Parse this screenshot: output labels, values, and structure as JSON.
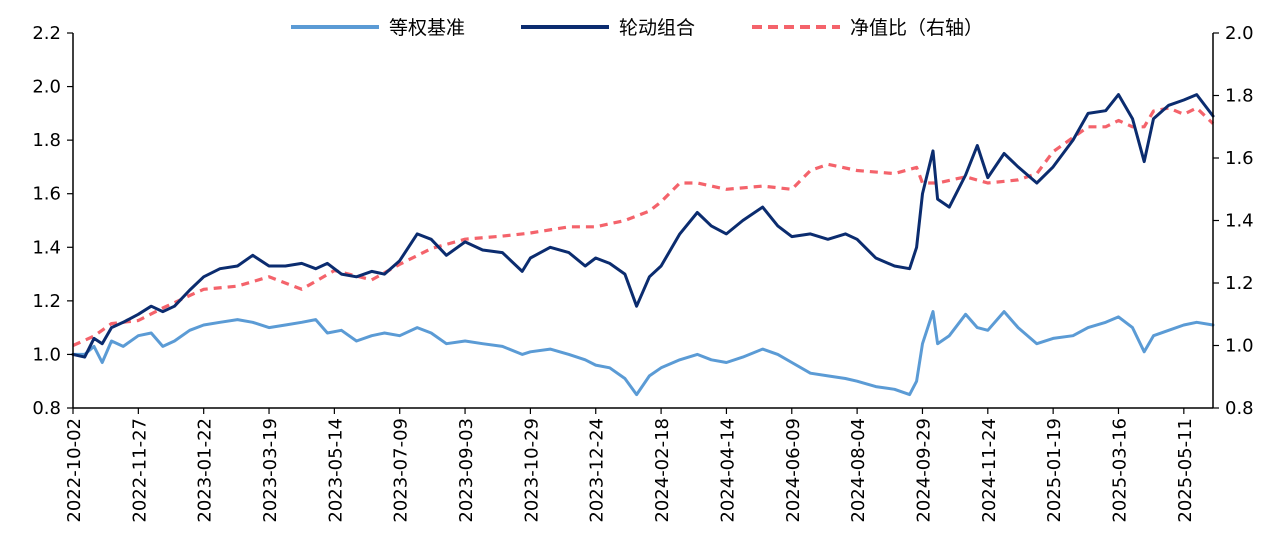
{
  "chart_data": {
    "type": "line",
    "title": "",
    "xlabel": "",
    "ylabel": "",
    "ylim_left": [
      0.8,
      2.2
    ],
    "ylim_right": [
      0.8,
      2.0
    ],
    "y_ticks_left": [
      "0.8",
      "1.0",
      "1.2",
      "1.4",
      "1.6",
      "1.8",
      "2.0",
      "2.2"
    ],
    "y_ticks_right": [
      "0.8",
      "1.0",
      "1.2",
      "1.4",
      "1.6",
      "1.8",
      "2.0"
    ],
    "x_range": [
      "2022-10-02",
      "2025-06-05"
    ],
    "x_ticks": [
      "2022-10-02",
      "2022-11-27",
      "2023-01-22",
      "2023-03-19",
      "2023-05-14",
      "2023-07-09",
      "2023-09-03",
      "2023-10-29",
      "2023-12-24",
      "2024-02-18",
      "2024-04-14",
      "2024-06-09",
      "2024-08-04",
      "2024-09-29",
      "2024-11-24",
      "2025-01-19",
      "2025-03-16",
      "2025-05-11"
    ],
    "legend_position": "top-center",
    "grid": false,
    "series": [
      {
        "name": "等权基准",
        "axis": "left",
        "color": "#5b9bd5",
        "style": "solid",
        "points": [
          [
            "2022-10-02",
            1.0
          ],
          [
            "2022-10-12",
            1.0
          ],
          [
            "2022-10-20",
            1.03
          ],
          [
            "2022-10-27",
            0.97
          ],
          [
            "2022-11-04",
            1.05
          ],
          [
            "2022-11-14",
            1.03
          ],
          [
            "2022-11-27",
            1.07
          ],
          [
            "2022-12-08",
            1.08
          ],
          [
            "2022-12-18",
            1.03
          ],
          [
            "2022-12-28",
            1.05
          ],
          [
            "2023-01-10",
            1.09
          ],
          [
            "2023-01-22",
            1.11
          ],
          [
            "2023-02-05",
            1.12
          ],
          [
            "2023-02-20",
            1.13
          ],
          [
            "2023-03-05",
            1.12
          ],
          [
            "2023-03-19",
            1.1
          ],
          [
            "2023-04-02",
            1.11
          ],
          [
            "2023-04-16",
            1.12
          ],
          [
            "2023-04-28",
            1.13
          ],
          [
            "2023-05-08",
            1.08
          ],
          [
            "2023-05-20",
            1.09
          ],
          [
            "2023-06-02",
            1.05
          ],
          [
            "2023-06-15",
            1.07
          ],
          [
            "2023-06-26",
            1.08
          ],
          [
            "2023-07-09",
            1.07
          ],
          [
            "2023-07-24",
            1.1
          ],
          [
            "2023-08-05",
            1.08
          ],
          [
            "2023-08-18",
            1.04
          ],
          [
            "2023-09-03",
            1.05
          ],
          [
            "2023-09-18",
            1.04
          ],
          [
            "2023-10-05",
            1.03
          ],
          [
            "2023-10-22",
            1.0
          ],
          [
            "2023-10-29",
            1.01
          ],
          [
            "2023-11-15",
            1.02
          ],
          [
            "2023-12-01",
            1.0
          ],
          [
            "2023-12-15",
            0.98
          ],
          [
            "2023-12-24",
            0.96
          ],
          [
            "2024-01-05",
            0.95
          ],
          [
            "2024-01-18",
            0.91
          ],
          [
            "2024-01-28",
            0.85
          ],
          [
            "2024-02-08",
            0.92
          ],
          [
            "2024-02-18",
            0.95
          ],
          [
            "2024-03-05",
            0.98
          ],
          [
            "2024-03-20",
            1.0
          ],
          [
            "2024-04-01",
            0.98
          ],
          [
            "2024-04-14",
            0.97
          ],
          [
            "2024-04-28",
            0.99
          ],
          [
            "2024-05-15",
            1.02
          ],
          [
            "2024-05-28",
            1.0
          ],
          [
            "2024-06-09",
            0.97
          ],
          [
            "2024-06-25",
            0.93
          ],
          [
            "2024-07-10",
            0.92
          ],
          [
            "2024-07-25",
            0.91
          ],
          [
            "2024-08-04",
            0.9
          ],
          [
            "2024-08-20",
            0.88
          ],
          [
            "2024-09-05",
            0.87
          ],
          [
            "2024-09-18",
            0.85
          ],
          [
            "2024-09-24",
            0.9
          ],
          [
            "2024-09-29",
            1.04
          ],
          [
            "2024-10-08",
            1.16
          ],
          [
            "2024-10-12",
            1.04
          ],
          [
            "2024-10-22",
            1.07
          ],
          [
            "2024-11-05",
            1.15
          ],
          [
            "2024-11-15",
            1.1
          ],
          [
            "2024-11-24",
            1.09
          ],
          [
            "2024-12-08",
            1.16
          ],
          [
            "2024-12-20",
            1.1
          ],
          [
            "2025-01-05",
            1.04
          ],
          [
            "2025-01-19",
            1.06
          ],
          [
            "2025-02-05",
            1.07
          ],
          [
            "2025-02-18",
            1.1
          ],
          [
            "2025-03-05",
            1.12
          ],
          [
            "2025-03-16",
            1.14
          ],
          [
            "2025-03-28",
            1.1
          ],
          [
            "2025-04-07",
            1.01
          ],
          [
            "2025-04-15",
            1.07
          ],
          [
            "2025-04-28",
            1.09
          ],
          [
            "2025-05-11",
            1.11
          ],
          [
            "2025-05-22",
            1.12
          ],
          [
            "2025-06-05",
            1.11
          ]
        ]
      },
      {
        "name": "轮动组合",
        "axis": "left",
        "color": "#0b2c6f",
        "style": "solid",
        "points": [
          [
            "2022-10-02",
            1.0
          ],
          [
            "2022-10-12",
            0.99
          ],
          [
            "2022-10-20",
            1.06
          ],
          [
            "2022-10-27",
            1.04
          ],
          [
            "2022-11-04",
            1.1
          ],
          [
            "2022-11-14",
            1.12
          ],
          [
            "2022-11-27",
            1.15
          ],
          [
            "2022-12-08",
            1.18
          ],
          [
            "2022-12-18",
            1.16
          ],
          [
            "2022-12-28",
            1.18
          ],
          [
            "2023-01-10",
            1.24
          ],
          [
            "2023-01-22",
            1.29
          ],
          [
            "2023-02-05",
            1.32
          ],
          [
            "2023-02-20",
            1.33
          ],
          [
            "2023-03-05",
            1.37
          ],
          [
            "2023-03-19",
            1.33
          ],
          [
            "2023-04-02",
            1.33
          ],
          [
            "2023-04-16",
            1.34
          ],
          [
            "2023-04-28",
            1.32
          ],
          [
            "2023-05-08",
            1.34
          ],
          [
            "2023-05-20",
            1.3
          ],
          [
            "2023-06-02",
            1.29
          ],
          [
            "2023-06-15",
            1.31
          ],
          [
            "2023-06-26",
            1.3
          ],
          [
            "2023-07-09",
            1.35
          ],
          [
            "2023-07-24",
            1.45
          ],
          [
            "2023-08-05",
            1.43
          ],
          [
            "2023-08-18",
            1.37
          ],
          [
            "2023-09-03",
            1.42
          ],
          [
            "2023-09-18",
            1.39
          ],
          [
            "2023-10-05",
            1.38
          ],
          [
            "2023-10-22",
            1.31
          ],
          [
            "2023-10-29",
            1.36
          ],
          [
            "2023-11-15",
            1.4
          ],
          [
            "2023-12-01",
            1.38
          ],
          [
            "2023-12-15",
            1.33
          ],
          [
            "2023-12-24",
            1.36
          ],
          [
            "2024-01-05",
            1.34
          ],
          [
            "2024-01-18",
            1.3
          ],
          [
            "2024-01-28",
            1.18
          ],
          [
            "2024-02-08",
            1.29
          ],
          [
            "2024-02-18",
            1.33
          ],
          [
            "2024-03-05",
            1.45
          ],
          [
            "2024-03-20",
            1.53
          ],
          [
            "2024-04-01",
            1.48
          ],
          [
            "2024-04-14",
            1.45
          ],
          [
            "2024-04-28",
            1.5
          ],
          [
            "2024-05-15",
            1.55
          ],
          [
            "2024-05-28",
            1.48
          ],
          [
            "2024-06-09",
            1.44
          ],
          [
            "2024-06-25",
            1.45
          ],
          [
            "2024-07-10",
            1.43
          ],
          [
            "2024-07-25",
            1.45
          ],
          [
            "2024-08-04",
            1.43
          ],
          [
            "2024-08-20",
            1.36
          ],
          [
            "2024-09-05",
            1.33
          ],
          [
            "2024-09-18",
            1.32
          ],
          [
            "2024-09-24",
            1.4
          ],
          [
            "2024-09-29",
            1.6
          ],
          [
            "2024-10-08",
            1.76
          ],
          [
            "2024-10-12",
            1.58
          ],
          [
            "2024-10-22",
            1.55
          ],
          [
            "2024-11-05",
            1.67
          ],
          [
            "2024-11-15",
            1.78
          ],
          [
            "2024-11-24",
            1.66
          ],
          [
            "2024-12-08",
            1.75
          ],
          [
            "2024-12-20",
            1.7
          ],
          [
            "2025-01-05",
            1.64
          ],
          [
            "2025-01-19",
            1.7
          ],
          [
            "2025-02-05",
            1.8
          ],
          [
            "2025-02-18",
            1.9
          ],
          [
            "2025-03-05",
            1.91
          ],
          [
            "2025-03-16",
            1.97
          ],
          [
            "2025-03-28",
            1.88
          ],
          [
            "2025-04-07",
            1.72
          ],
          [
            "2025-04-15",
            1.88
          ],
          [
            "2025-04-28",
            1.93
          ],
          [
            "2025-05-11",
            1.95
          ],
          [
            "2025-05-22",
            1.97
          ],
          [
            "2025-06-05",
            1.89
          ]
        ]
      },
      {
        "name": "净值比（右轴）",
        "axis": "right",
        "color": "#f4636b",
        "style": "dashed",
        "points": [
          [
            "2022-10-02",
            1.0
          ],
          [
            "2022-10-20",
            1.03
          ],
          [
            "2022-11-04",
            1.07
          ],
          [
            "2022-11-27",
            1.08
          ],
          [
            "2022-12-18",
            1.12
          ],
          [
            "2023-01-10",
            1.16
          ],
          [
            "2023-01-22",
            1.18
          ],
          [
            "2023-02-20",
            1.19
          ],
          [
            "2023-03-19",
            1.22
          ],
          [
            "2023-04-16",
            1.18
          ],
          [
            "2023-05-14",
            1.24
          ],
          [
            "2023-06-15",
            1.21
          ],
          [
            "2023-07-09",
            1.26
          ],
          [
            "2023-08-05",
            1.31
          ],
          [
            "2023-09-03",
            1.34
          ],
          [
            "2023-10-05",
            1.35
          ],
          [
            "2023-10-29",
            1.36
          ],
          [
            "2023-12-01",
            1.38
          ],
          [
            "2023-12-24",
            1.38
          ],
          [
            "2024-01-18",
            1.4
          ],
          [
            "2024-02-08",
            1.43
          ],
          [
            "2024-02-18",
            1.46
          ],
          [
            "2024-03-05",
            1.52
          ],
          [
            "2024-03-20",
            1.52
          ],
          [
            "2024-04-14",
            1.5
          ],
          [
            "2024-05-15",
            1.51
          ],
          [
            "2024-06-09",
            1.5
          ],
          [
            "2024-06-25",
            1.56
          ],
          [
            "2024-07-10",
            1.58
          ],
          [
            "2024-08-04",
            1.56
          ],
          [
            "2024-09-05",
            1.55
          ],
          [
            "2024-09-24",
            1.57
          ],
          [
            "2024-09-29",
            1.52
          ],
          [
            "2024-10-12",
            1.52
          ],
          [
            "2024-11-05",
            1.54
          ],
          [
            "2024-11-24",
            1.52
          ],
          [
            "2024-12-20",
            1.53
          ],
          [
            "2025-01-05",
            1.55
          ],
          [
            "2025-01-19",
            1.62
          ],
          [
            "2025-02-18",
            1.7
          ],
          [
            "2025-03-05",
            1.7
          ],
          [
            "2025-03-16",
            1.72
          ],
          [
            "2025-03-28",
            1.7
          ],
          [
            "2025-04-07",
            1.7
          ],
          [
            "2025-04-15",
            1.75
          ],
          [
            "2025-04-28",
            1.76
          ],
          [
            "2025-05-11",
            1.74
          ],
          [
            "2025-05-22",
            1.76
          ],
          [
            "2025-06-05",
            1.71
          ]
        ]
      }
    ]
  }
}
